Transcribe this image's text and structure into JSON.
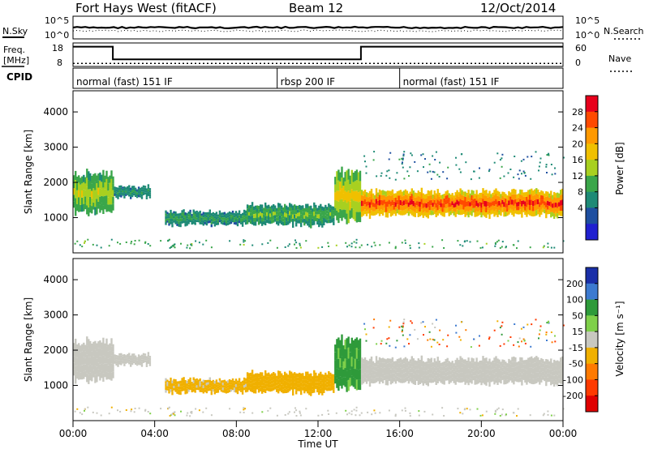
{
  "header": {
    "station": "Fort Hays West (fitACF)",
    "beam": "Beam 12",
    "date": "12/Oct/2014"
  },
  "noise_panel": {
    "left_label": "N.Sky",
    "right_label": "N.Search",
    "left_ticks": [
      "10^5",
      "10^0"
    ],
    "right_ticks": [
      "10^5",
      "10^0"
    ]
  },
  "freq_panel": {
    "left_label_top": "Freq.",
    "left_label_unit": "[MHz]",
    "right_label": "Nave",
    "left_ticks": [
      "18",
      "8"
    ],
    "right_ticks": [
      "60",
      "0"
    ],
    "freq_steps": [
      {
        "from": 0.0,
        "to": 1.95,
        "value": 17.0
      },
      {
        "from": 1.95,
        "to": 14.1,
        "value": 11.0
      },
      {
        "from": 14.1,
        "to": 24.0,
        "value": 17.0
      }
    ],
    "nave_level": 8
  },
  "cpid_panel": {
    "label": "CPID",
    "segments": [
      {
        "start_hour": 0,
        "label": "normal (fast) 151 IF"
      },
      {
        "start_hour": 10,
        "label": "rbsp 200 IF"
      },
      {
        "start_hour": 16,
        "label": "normal (fast) 151 IF"
      }
    ]
  },
  "power_panel": {
    "ylabel": "Slant Range [km]",
    "cbar_label": "Power [dB]",
    "cbar_ticks": [
      "28",
      "24",
      "20",
      "16",
      "12",
      "8",
      "4"
    ],
    "cbar_colors": [
      "#e8001c",
      "#ff4a00",
      "#ff9900",
      "#f0c000",
      "#a8d020",
      "#3aa64a",
      "#1e8a76",
      "#1e4fa0",
      "#2020d0"
    ]
  },
  "velocity_panel": {
    "ylabel": "Slant Range [km]",
    "cbar_label": "Velocity [m s⁻¹]",
    "cbar_ticks": [
      "200",
      "100",
      "50",
      "15",
      "-15",
      "-50",
      "-100",
      "-200"
    ],
    "cbar_colors": [
      "#1a2fa8",
      "#3c7ad0",
      "#2e9a3a",
      "#7fd04a",
      "#c8c8c0",
      "#f0b000",
      "#ff7a00",
      "#ff3a00",
      "#e00000"
    ]
  },
  "x_axis": {
    "label": "Time UT",
    "ticks": [
      "00:00",
      "04:00",
      "08:00",
      "12:00",
      "16:00",
      "20:00",
      "00:00"
    ]
  },
  "chart_data": {
    "type": "heatmap",
    "title": "Fort Hays West (fitACF)",
    "xlabel": "Time UT",
    "ylabel": "Slant Range [km]",
    "x_range_hours": [
      0,
      24
    ],
    "ylim_km": [
      0,
      4600
    ],
    "y_ticks": [
      1000,
      2000,
      3000,
      4000
    ],
    "power_scale_db": [
      0,
      30
    ],
    "velocity_scale_ms": [
      -250,
      250
    ],
    "echo_regions": [
      {
        "start_hour": 0.0,
        "end_hour": 2.0,
        "range_low_km": 1050,
        "range_high_km": 2350,
        "power_db": 14,
        "velocity_ms": 0
      },
      {
        "start_hour": 2.0,
        "end_hour": 3.8,
        "range_low_km": 1550,
        "range_high_km": 1900,
        "power_db": 8,
        "velocity_ms": 0
      },
      {
        "start_hour": 4.5,
        "end_hour": 8.5,
        "range_low_km": 780,
        "range_high_km": 1200,
        "power_db": 9,
        "velocity_ms": -25
      },
      {
        "start_hour": 8.5,
        "end_hour": 12.8,
        "range_low_km": 750,
        "range_high_km": 1400,
        "power_db": 11,
        "velocity_ms": -30
      },
      {
        "start_hour": 12.8,
        "end_hour": 14.1,
        "range_low_km": 850,
        "range_high_km": 2400,
        "power_db": 16,
        "velocity_ms": 60
      },
      {
        "start_hour": 14.1,
        "end_hour": 24.0,
        "range_low_km": 1000,
        "range_high_km": 1800,
        "power_db": 24,
        "velocity_ms": 0
      }
    ]
  }
}
